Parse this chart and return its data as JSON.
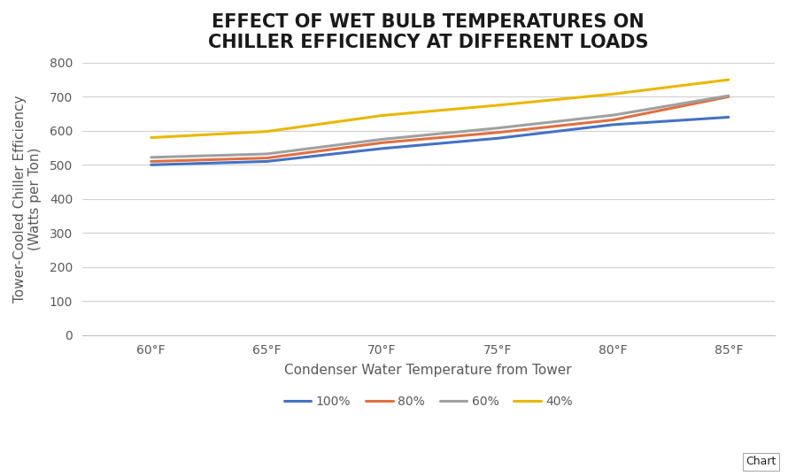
{
  "title": "EFFECT OF WET BULB TEMPERATURES ON\nCHILLER EFFICIENCY AT DIFFERENT LOADS",
  "xlabel": "Condenser Water Temperature from Tower",
  "ylabel": "Tower-Cooled Chiller Efficiency\n(Watts per Ton)",
  "x_labels": [
    "60°F",
    "65°F",
    "70°F",
    "75°F",
    "80°F",
    "85°F"
  ],
  "x_values": [
    60,
    65,
    70,
    75,
    80,
    85
  ],
  "series": [
    {
      "label": "100%",
      "color": "#4472C4",
      "values": [
        500,
        510,
        548,
        578,
        618,
        640
      ]
    },
    {
      "label": "80%",
      "color": "#E07040",
      "values": [
        510,
        520,
        565,
        595,
        632,
        700
      ]
    },
    {
      "label": "60%",
      "color": "#9FA0A0",
      "values": [
        522,
        532,
        575,
        608,
        646,
        703
      ]
    },
    {
      "label": "40%",
      "color": "#E8B800",
      "values": [
        580,
        598,
        645,
        675,
        708,
        750
      ]
    }
  ],
  "ylim": [
    0,
    800
  ],
  "yticks": [
    0,
    100,
    200,
    300,
    400,
    500,
    600,
    700,
    800
  ],
  "background_color": "#FFFFFF",
  "plot_bg_color": "#FFFFFF",
  "grid_color": "#D0D0D0",
  "title_fontsize": 15,
  "axis_label_fontsize": 11,
  "tick_fontsize": 10,
  "legend_fontsize": 10,
  "line_width": 2.2,
  "watermark_text": "Chart",
  "title_color": "#1A1A1A",
  "axis_label_color": "#595959",
  "tick_color": "#595959"
}
